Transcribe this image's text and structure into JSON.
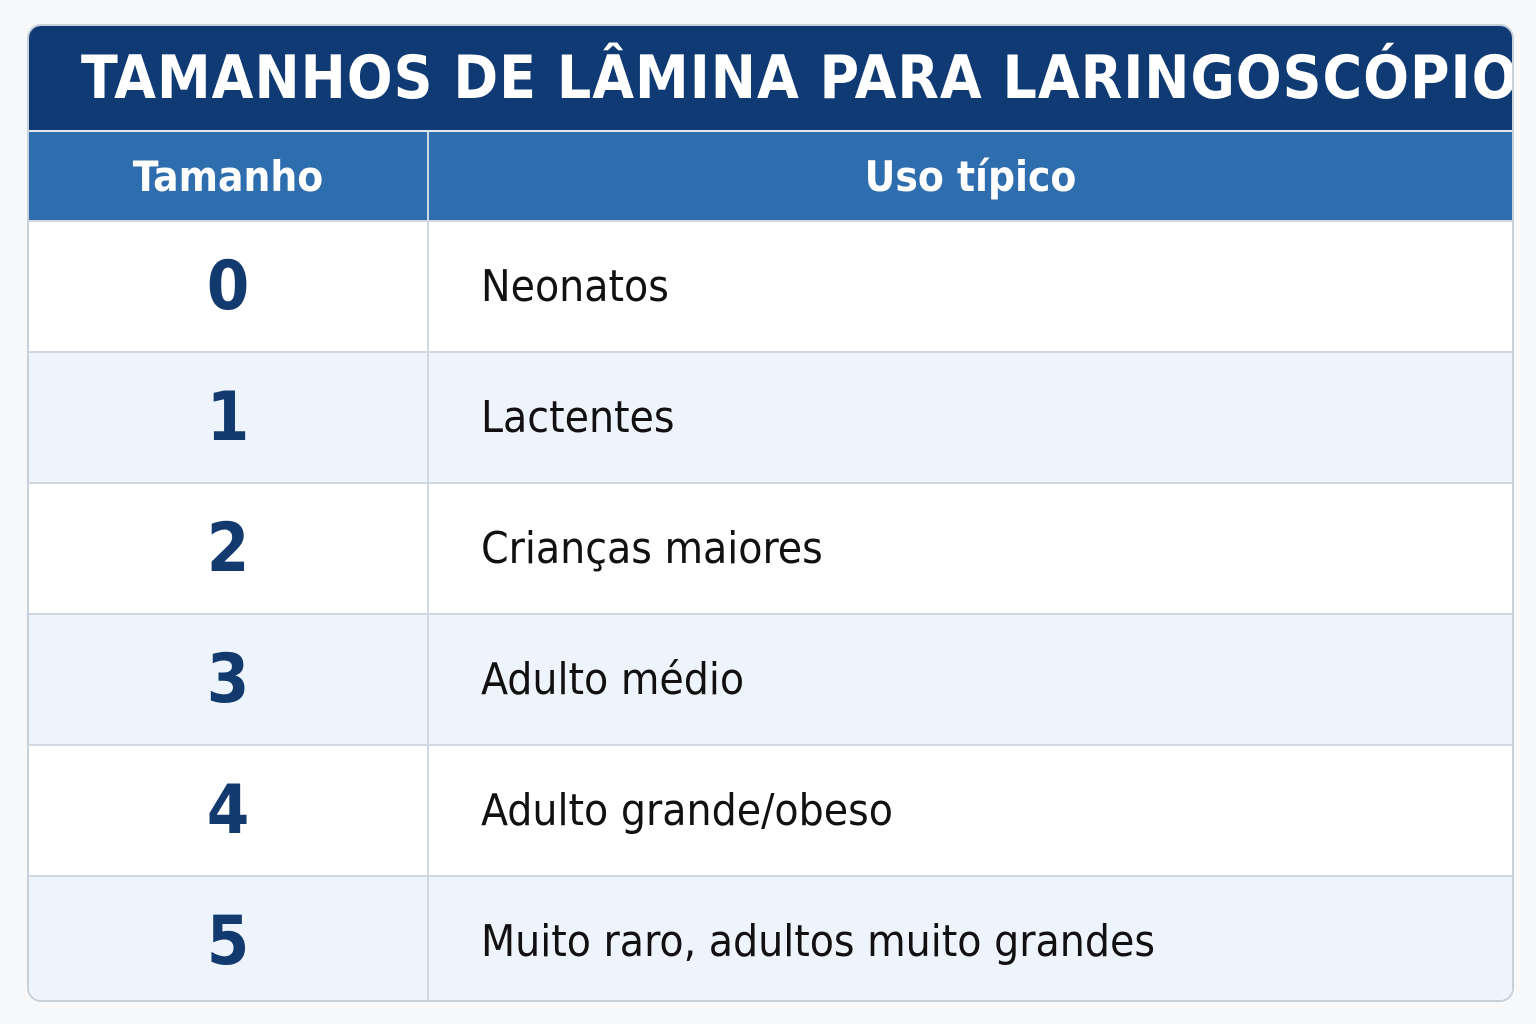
{
  "header": {
    "title": "TAMANHOS DE LÂMINA PARA LARINGOSCÓPIO"
  },
  "table": {
    "columns": [
      "Tamanho",
      "Uso típico"
    ],
    "rows": [
      [
        "0",
        "Neonatos"
      ],
      [
        "1",
        "Lactentes"
      ],
      [
        "2",
        "Crianças maiores"
      ],
      [
        "3",
        "Adulto médio"
      ],
      [
        "4",
        "Adulto grande/obeso"
      ],
      [
        "5",
        "Muito raro, adultos muito grandes"
      ]
    ]
  }
}
